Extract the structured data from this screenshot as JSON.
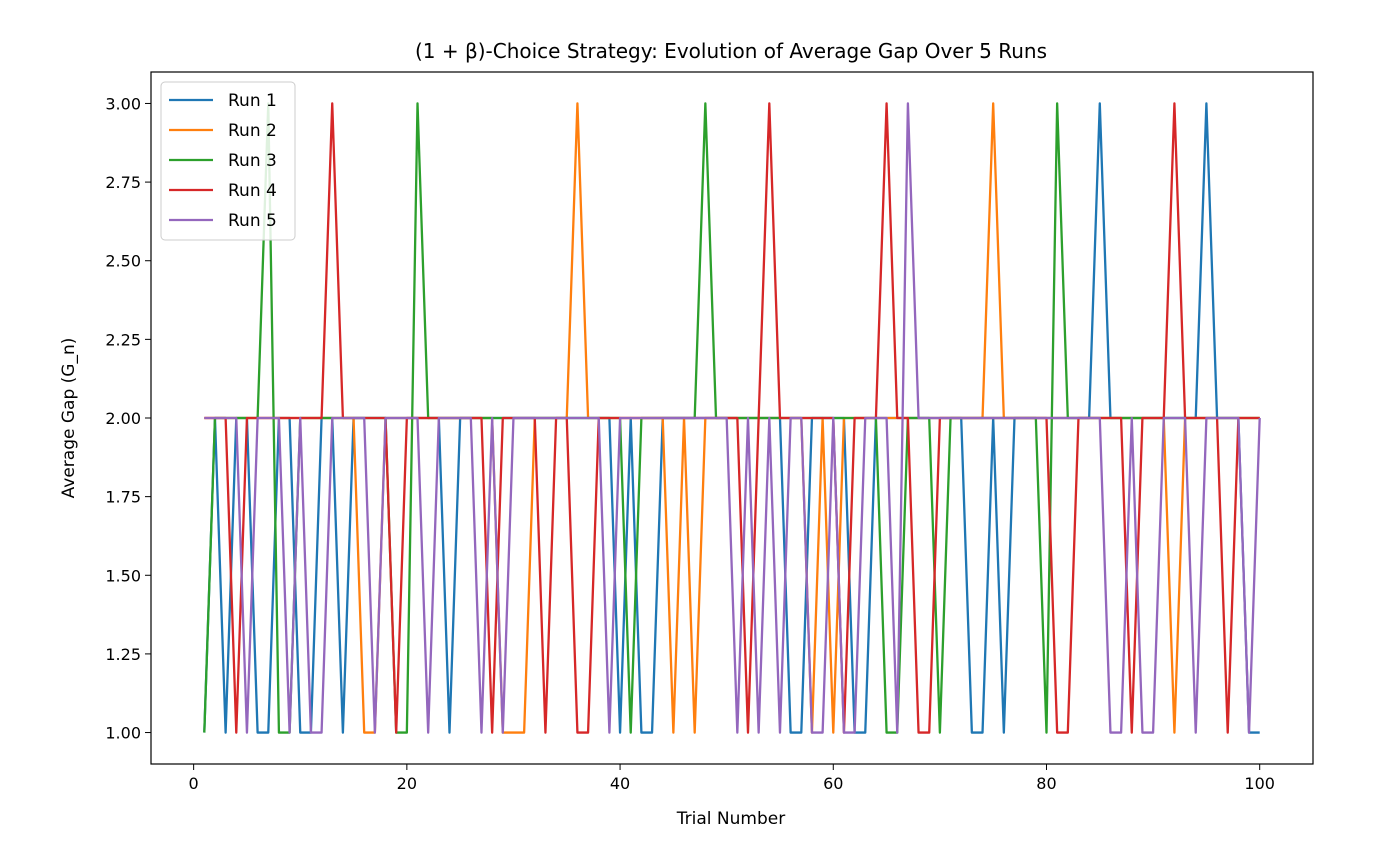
{
  "chart_data": {
    "type": "line",
    "title": "(1 + β)-Choice Strategy: Evolution of Average Gap Over 5 Runs",
    "xlabel": "Trial Number",
    "ylabel": "Average Gap (G_n)",
    "xlim": [
      -4,
      105
    ],
    "ylim": [
      0.9,
      3.1
    ],
    "xticks": [
      0,
      20,
      40,
      60,
      80,
      100
    ],
    "yticks": [
      1.0,
      1.25,
      1.5,
      1.75,
      2.0,
      2.25,
      2.5,
      2.75,
      3.0
    ],
    "xtick_labels": [
      "0",
      "20",
      "40",
      "60",
      "80",
      "100"
    ],
    "ytick_labels": [
      "1.00",
      "1.25",
      "1.50",
      "1.75",
      "2.00",
      "2.25",
      "2.50",
      "2.75",
      "3.00"
    ],
    "grid": false,
    "legend_position": "top-left",
    "x": [
      1,
      2,
      3,
      4,
      5,
      6,
      7,
      8,
      9,
      10,
      11,
      12,
      13,
      14,
      15,
      16,
      17,
      18,
      19,
      20,
      21,
      22,
      23,
      24,
      25,
      26,
      27,
      28,
      29,
      30,
      31,
      32,
      33,
      34,
      35,
      36,
      37,
      38,
      39,
      40,
      41,
      42,
      43,
      44,
      45,
      46,
      47,
      48,
      49,
      50,
      51,
      52,
      53,
      54,
      55,
      56,
      57,
      58,
      59,
      60,
      61,
      62,
      63,
      64,
      65,
      66,
      67,
      68,
      69,
      70,
      71,
      72,
      73,
      74,
      75,
      76,
      77,
      78,
      79,
      80,
      81,
      82,
      83,
      84,
      85,
      86,
      87,
      88,
      89,
      90,
      91,
      92,
      93,
      94,
      95,
      96,
      97,
      98,
      99,
      100
    ],
    "series": [
      {
        "name": "Run 1",
        "color": "#1f77b4",
        "values": [
          1,
          2,
          1,
          2,
          2,
          1,
          1,
          2,
          2,
          1,
          1,
          2,
          2,
          1,
          2,
          2,
          2,
          2,
          2,
          2,
          2,
          2,
          2,
          1,
          2,
          2,
          2,
          2,
          2,
          2,
          2,
          2,
          2,
          2,
          2,
          2,
          2,
          2,
          2,
          1,
          2,
          1,
          1,
          2,
          2,
          2,
          2,
          2,
          2,
          2,
          2,
          2,
          2,
          2,
          2,
          1,
          1,
          2,
          2,
          2,
          2,
          1,
          1,
          2,
          2,
          2,
          2,
          2,
          2,
          2,
          2,
          2,
          1,
          1,
          2,
          1,
          2,
          2,
          2,
          2,
          2,
          2,
          2,
          2,
          3,
          2,
          2,
          2,
          2,
          2,
          2,
          2,
          2,
          2,
          3,
          2,
          2,
          2,
          1,
          1
        ]
      },
      {
        "name": "Run 2",
        "color": "#ff7f0e",
        "values": [
          2,
          2,
          2,
          2,
          2,
          2,
          2,
          2,
          2,
          2,
          2,
          2,
          2,
          2,
          2,
          1,
          1,
          2,
          2,
          2,
          2,
          2,
          2,
          2,
          2,
          2,
          2,
          2,
          1,
          1,
          1,
          2,
          2,
          2,
          2,
          3,
          2,
          2,
          2,
          2,
          2,
          2,
          2,
          2,
          1,
          2,
          1,
          2,
          2,
          2,
          2,
          2,
          2,
          2,
          2,
          2,
          2,
          1,
          2,
          1,
          2,
          2,
          2,
          2,
          2,
          2,
          2,
          2,
          2,
          2,
          2,
          2,
          2,
          2,
          3,
          2,
          2,
          2,
          2,
          2,
          2,
          2,
          2,
          2,
          2,
          2,
          2,
          2,
          2,
          2,
          2,
          1,
          2,
          2,
          2,
          2,
          2,
          2,
          2,
          2
        ]
      },
      {
        "name": "Run 3",
        "color": "#2ca02c",
        "values": [
          1,
          2,
          2,
          2,
          2,
          2,
          3,
          1,
          1,
          2,
          2,
          2,
          2,
          2,
          2,
          2,
          2,
          2,
          1,
          1,
          3,
          2,
          2,
          2,
          2,
          2,
          2,
          2,
          2,
          2,
          2,
          2,
          2,
          2,
          2,
          2,
          2,
          2,
          2,
          2,
          1,
          2,
          2,
          2,
          2,
          2,
          2,
          3,
          2,
          2,
          2,
          2,
          2,
          2,
          2,
          2,
          2,
          2,
          2,
          2,
          2,
          2,
          2,
          2,
          1,
          1,
          2,
          2,
          2,
          1,
          2,
          2,
          2,
          2,
          2,
          2,
          2,
          2,
          2,
          1,
          3,
          2,
          2,
          2,
          2,
          2,
          2,
          2,
          2,
          2,
          2,
          2,
          2,
          2,
          2,
          2,
          2,
          2,
          2,
          2
        ]
      },
      {
        "name": "Run 4",
        "color": "#d62728",
        "values": [
          2,
          2,
          2,
          1,
          2,
          2,
          2,
          2,
          2,
          2,
          2,
          2,
          3,
          2,
          2,
          2,
          2,
          2,
          1,
          2,
          2,
          2,
          2,
          2,
          2,
          2,
          2,
          1,
          2,
          2,
          2,
          2,
          1,
          2,
          2,
          1,
          1,
          2,
          2,
          2,
          2,
          2,
          2,
          2,
          2,
          2,
          2,
          2,
          2,
          2,
          2,
          1,
          2,
          3,
          2,
          2,
          2,
          2,
          2,
          2,
          1,
          2,
          2,
          2,
          3,
          2,
          2,
          1,
          1,
          2,
          2,
          2,
          2,
          2,
          2,
          2,
          2,
          2,
          2,
          2,
          1,
          1,
          2,
          2,
          2,
          2,
          2,
          1,
          2,
          2,
          2,
          3,
          2,
          2,
          2,
          2,
          1,
          2,
          2,
          2
        ]
      },
      {
        "name": "Run 5",
        "color": "#9467bd",
        "values": [
          2,
          2,
          2,
          2,
          1,
          2,
          2,
          2,
          1,
          2,
          1,
          1,
          2,
          2,
          2,
          2,
          1,
          2,
          2,
          2,
          2,
          1,
          2,
          2,
          2,
          2,
          1,
          2,
          1,
          2,
          2,
          2,
          2,
          2,
          2,
          2,
          2,
          2,
          1,
          2,
          2,
          2,
          2,
          2,
          2,
          2,
          2,
          2,
          2,
          2,
          1,
          2,
          1,
          2,
          1,
          2,
          2,
          1,
          1,
          2,
          1,
          1,
          2,
          2,
          2,
          1,
          3,
          2,
          2,
          2,
          2,
          2,
          2,
          2,
          2,
          2,
          2,
          2,
          2,
          2,
          2,
          2,
          2,
          2,
          2,
          1,
          1,
          2,
          1,
          1,
          2,
          2,
          2,
          1,
          2,
          2,
          2,
          2,
          1,
          2
        ]
      }
    ]
  }
}
